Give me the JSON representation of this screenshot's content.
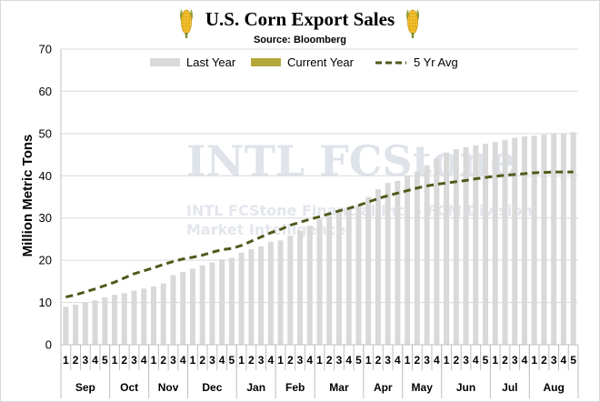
{
  "chart_data": {
    "type": "bar",
    "title": "U.S. Corn Export Sales",
    "subtitle": "Source: Bloomberg",
    "ylabel": "Million Metric Tons",
    "ylim": [
      0,
      70
    ],
    "yticks": [
      0,
      10,
      20,
      30,
      40,
      50,
      60,
      70
    ],
    "grid": true,
    "legend_position": "top",
    "colors": {
      "last_year": "#d9d9d9",
      "current_year": "#b3a83a",
      "avg5": "#4f5a1c",
      "grid": "#d9d9d9",
      "axis": "#bfbfbf"
    },
    "months": [
      {
        "label": "Sep",
        "weeks": 5
      },
      {
        "label": "Oct",
        "weeks": 4
      },
      {
        "label": "Nov",
        "weeks": 4
      },
      {
        "label": "Dec",
        "weeks": 5
      },
      {
        "label": "Jan",
        "weeks": 4
      },
      {
        "label": "Feb",
        "weeks": 4
      },
      {
        "label": "Mar",
        "weeks": 5
      },
      {
        "label": "Apr",
        "weeks": 4
      },
      {
        "label": "May",
        "weeks": 4
      },
      {
        "label": "Jun",
        "weeks": 5
      },
      {
        "label": "Jul",
        "weeks": 4
      },
      {
        "label": "Aug",
        "weeks": 5
      }
    ],
    "week_labels": [
      "1",
      "2",
      "3",
      "4",
      "5",
      "1",
      "2",
      "3",
      "4",
      "1",
      "2",
      "3",
      "4",
      "1",
      "2",
      "3",
      "4",
      "5",
      "1",
      "2",
      "3",
      "4",
      "1",
      "2",
      "3",
      "4",
      "1",
      "2",
      "3",
      "4",
      "5",
      "1",
      "2",
      "3",
      "4",
      "1",
      "2",
      "3",
      "4",
      "1",
      "2",
      "3",
      "4",
      "5",
      "1",
      "2",
      "3",
      "4",
      "1",
      "2",
      "3",
      "4",
      "5"
    ],
    "series": [
      {
        "name": "Last Year",
        "type": "bar",
        "values": [
          9.0,
          9.5,
          10.0,
          10.5,
          11.2,
          11.8,
          12.2,
          12.8,
          13.3,
          13.8,
          14.5,
          16.5,
          17.2,
          18.0,
          18.8,
          19.5,
          20.2,
          20.6,
          21.8,
          22.6,
          23.3,
          24.4,
          24.7,
          25.8,
          27.0,
          28.2,
          29.7,
          30.5,
          31.5,
          32.3,
          33.0,
          35.0,
          36.8,
          38.3,
          38.8,
          40.0,
          41.0,
          42.5,
          44.0,
          45.5,
          46.3,
          46.8,
          47.2,
          47.6,
          48.0,
          48.5,
          49.0,
          49.3,
          49.5,
          49.8,
          50.0,
          50.0,
          50.3
        ]
      },
      {
        "name": "Current Year",
        "type": "bar",
        "values": []
      },
      {
        "name": "5 Yr Avg",
        "type": "line",
        "values": [
          11.3,
          11.8,
          12.5,
          13.2,
          14.0,
          14.8,
          15.8,
          16.8,
          17.5,
          18.2,
          19.0,
          19.7,
          20.3,
          20.7,
          21.2,
          21.9,
          22.5,
          22.8,
          23.5,
          24.5,
          25.5,
          26.5,
          27.3,
          28.3,
          29.0,
          29.7,
          30.3,
          31.0,
          31.7,
          32.3,
          33.0,
          33.8,
          34.6,
          35.3,
          35.9,
          36.5,
          37.1,
          37.6,
          38.0,
          38.3,
          38.6,
          38.9,
          39.3,
          39.6,
          39.9,
          40.1,
          40.3,
          40.5,
          40.7,
          40.8,
          40.9,
          40.9,
          40.9
        ]
      }
    ],
    "watermark": {
      "logo": "INTL FCStone",
      "line1": "INTL FCStone Financial Inc. - FCM Division",
      "line2": "Market Intelligence"
    },
    "icons": {
      "left": "corn-icon",
      "right": "corn-icon"
    }
  }
}
